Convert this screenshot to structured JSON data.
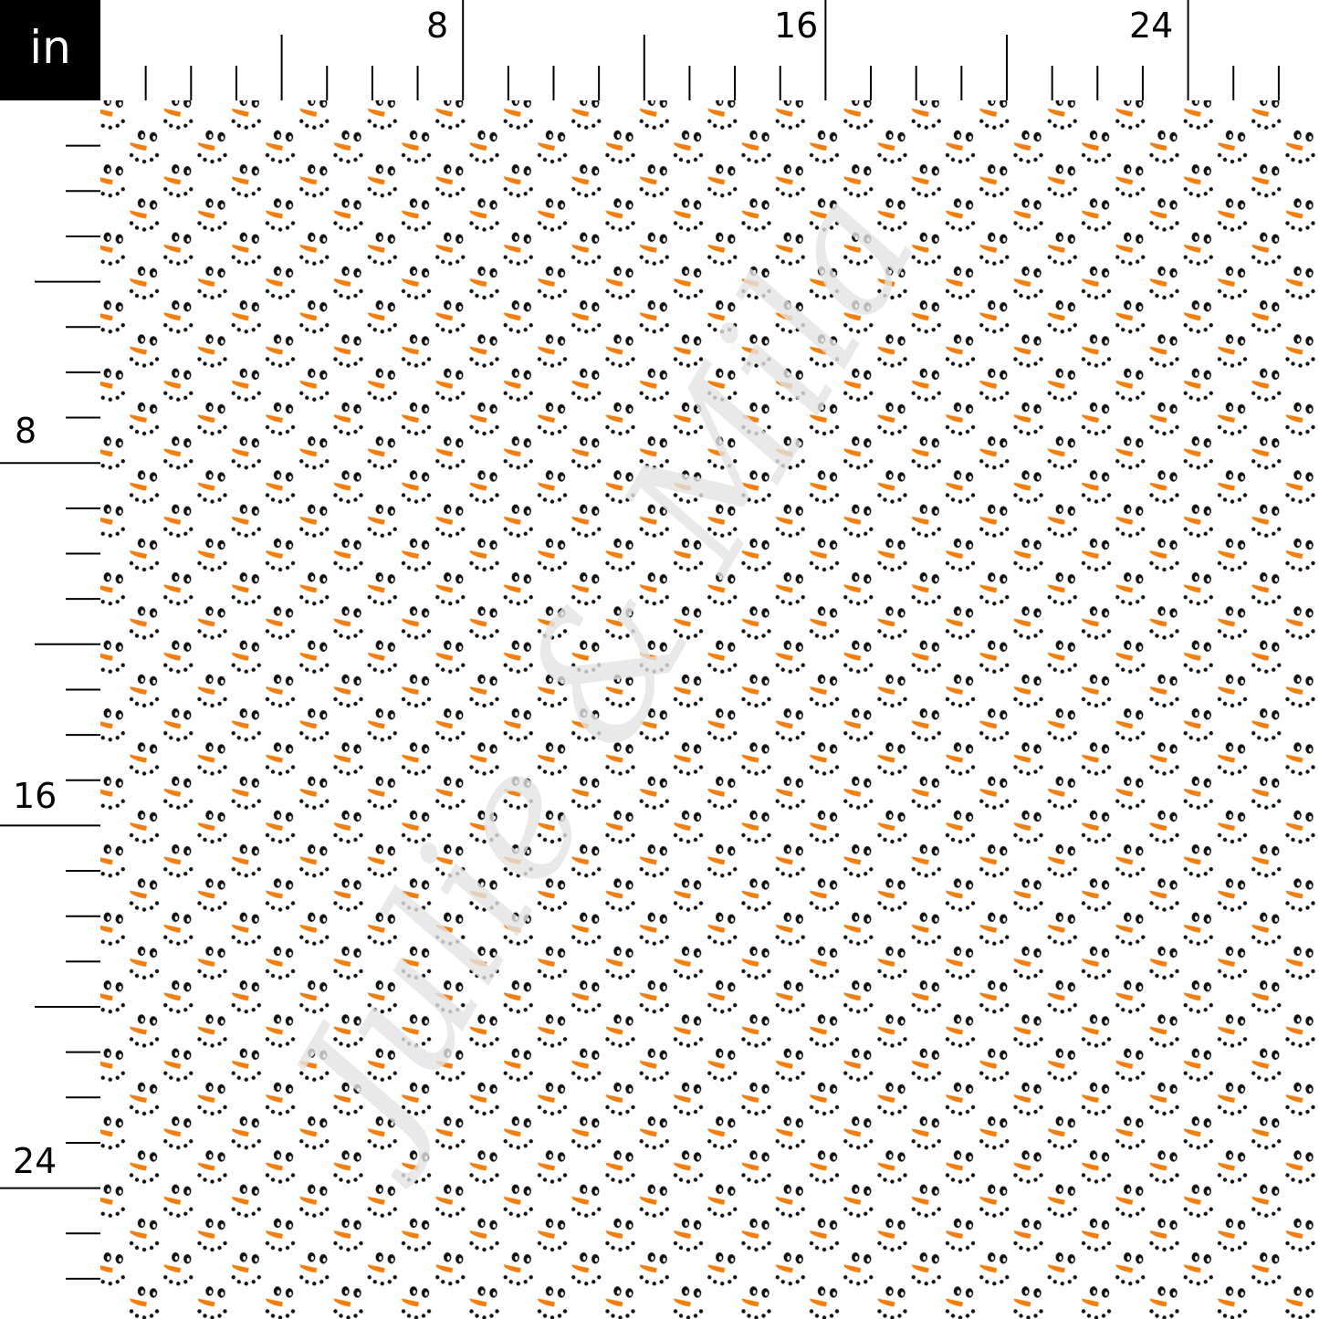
{
  "ruler": {
    "unit": "in",
    "top_labels": [
      "8",
      "16",
      "24"
    ],
    "left_labels": [
      "8",
      "16",
      "24"
    ],
    "tick_interval_in": 1
  },
  "pattern": {
    "motif": "snowman-face",
    "colors": {
      "background": "#ffffff",
      "eyes": "#111111",
      "nose": "#f07f12",
      "mouth": "#111111"
    }
  },
  "watermark": {
    "text": "Julie & Mila",
    "color": "#e4e4e4"
  }
}
